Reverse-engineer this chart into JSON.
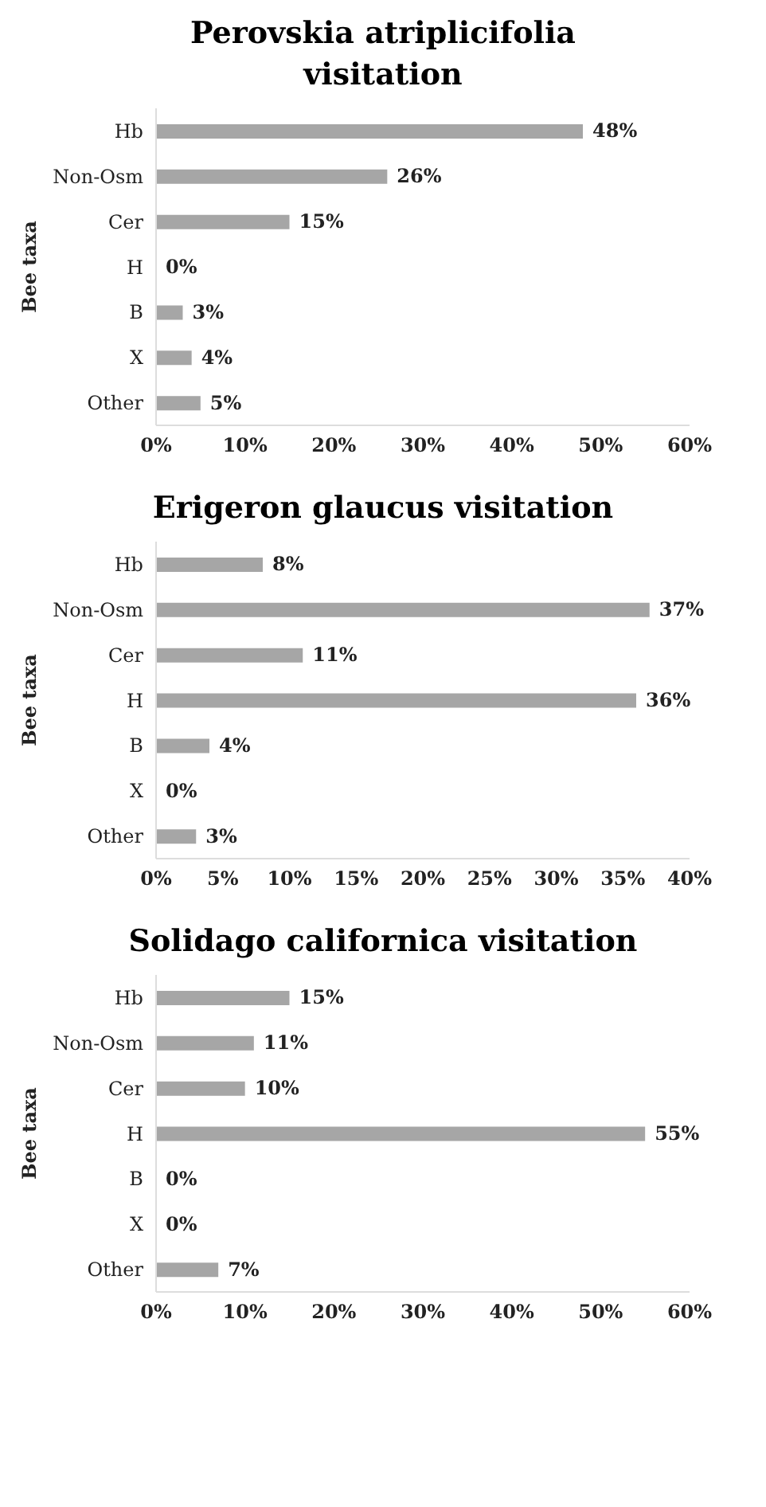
{
  "chart_data": [
    {
      "type": "bar",
      "orientation": "horizontal",
      "title": "Perovskia atriplicifolia visitation",
      "ylabel": "Bee taxa",
      "categories": [
        "Hb",
        "Non-Osm",
        "Cer",
        "H",
        "B",
        "X",
        "Other"
      ],
      "values": [
        48,
        26,
        15,
        0,
        3,
        4,
        5
      ],
      "value_labels": [
        "48%",
        "26%",
        "15%",
        "0%",
        "3%",
        "4%",
        "5%"
      ],
      "color": "#a6a6a6",
      "xlim": [
        0,
        60
      ],
      "xticks": [
        {
          "value": 0,
          "label": "0%"
        },
        {
          "value": 10,
          "label": "10%"
        },
        {
          "value": 20,
          "label": "20%"
        },
        {
          "value": 30,
          "label": "30%"
        },
        {
          "value": 40,
          "label": "40%"
        },
        {
          "value": 50,
          "label": "50%"
        },
        {
          "value": 60,
          "label": "60%"
        }
      ],
      "grid": false,
      "legend": false
    },
    {
      "type": "bar",
      "orientation": "horizontal",
      "title": "Erigeron glaucus visitation",
      "ylabel": "Bee taxa",
      "categories": [
        "Hb",
        "Non-Osm",
        "Cer",
        "H",
        "B",
        "X",
        "Other"
      ],
      "values": [
        8,
        37,
        11,
        36,
        4,
        0,
        3
      ],
      "value_labels": [
        "8%",
        "37%",
        "11%",
        "36%",
        "4%",
        "0%",
        "3%"
      ],
      "color": "#a6a6a6",
      "xlim": [
        0,
        40
      ],
      "xticks": [
        {
          "value": 0,
          "label": "0%"
        },
        {
          "value": 5,
          "label": "5%"
        },
        {
          "value": 10,
          "label": "10%"
        },
        {
          "value": 15,
          "label": "15%"
        },
        {
          "value": 20,
          "label": "20%"
        },
        {
          "value": 25,
          "label": "25%"
        },
        {
          "value": 30,
          "label": "30%"
        },
        {
          "value": 35,
          "label": "35%"
        },
        {
          "value": 40,
          "label": "40%"
        }
      ],
      "grid": false,
      "legend": false
    },
    {
      "type": "bar",
      "orientation": "horizontal",
      "title": "Solidago californica visitation",
      "ylabel": "Bee taxa",
      "categories": [
        "Hb",
        "Non-Osm",
        "Cer",
        "H",
        "B",
        "X",
        "Other"
      ],
      "values": [
        15,
        11,
        10,
        55,
        0,
        0,
        7
      ],
      "value_labels": [
        "15%",
        "11%",
        "10%",
        "55%",
        "0%",
        "0%",
        "7%"
      ],
      "color": "#a6a6a6",
      "xlim": [
        0,
        60
      ],
      "xticks": [
        {
          "value": 0,
          "label": "0%"
        },
        {
          "value": 10,
          "label": "10%"
        },
        {
          "value": 20,
          "label": "20%"
        },
        {
          "value": 30,
          "label": "30%"
        },
        {
          "value": 40,
          "label": "40%"
        },
        {
          "value": 50,
          "label": "50%"
        },
        {
          "value": 60,
          "label": "60%"
        }
      ],
      "grid": false,
      "legend": false
    }
  ]
}
